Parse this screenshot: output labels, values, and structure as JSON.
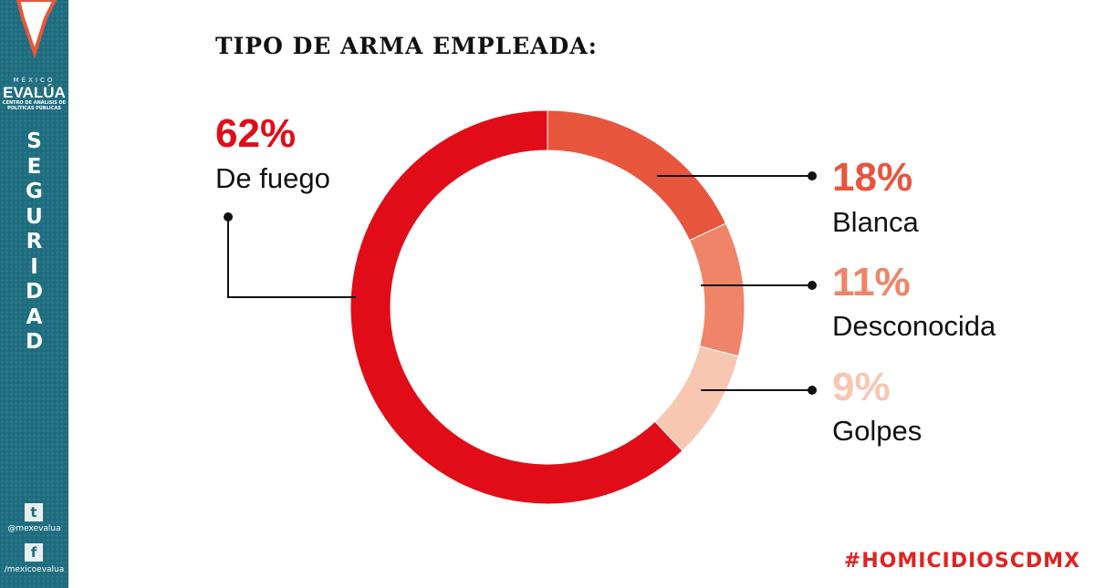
{
  "sidebar": {
    "org_top": "MÉXICO",
    "org_name": "EVALÚA",
    "org_sub": "CENTRO DE ANÁLISIS DE POLÍTICAS PÚBLICAS",
    "section": "S\nE\nG\nU\nR\nI\nD\nA\nD",
    "twitter": "@mexevalua",
    "facebook": "/mexicoevalua",
    "twitter_icon": "twitter-icon",
    "facebook_icon": "facebook-icon"
  },
  "chart_data": {
    "type": "pie",
    "donut": true,
    "title": "TIPO DE ARMA EMPLEADA:",
    "slices": [
      {
        "label": "Blanca",
        "value": 18,
        "pct_label": "18%",
        "color": "#e8553d"
      },
      {
        "label": "Desconocida",
        "value": 11,
        "pct_label": "11%",
        "color": "#ef8468"
      },
      {
        "label": "Golpes",
        "value": 9,
        "pct_label": "9%",
        "color": "#f7c7b2"
      },
      {
        "label": "De fuego",
        "value": 62,
        "pct_label": "62%",
        "color": "#e00d18"
      }
    ]
  },
  "hashtag": "#HOMICIDIOSCDMX"
}
